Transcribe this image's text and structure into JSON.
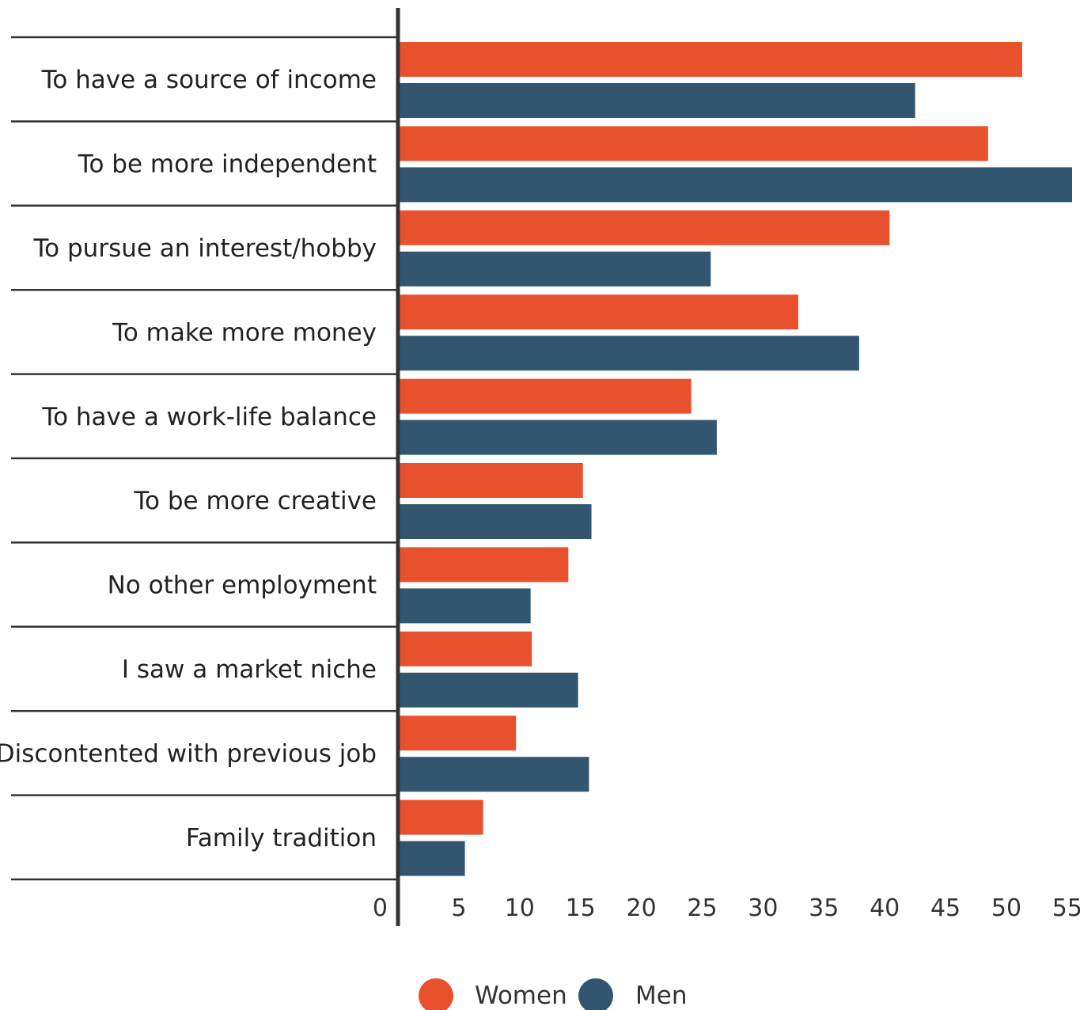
{
  "chart_data": {
    "type": "bar",
    "orientation": "horizontal",
    "categories": [
      "To have a source of income",
      "To be more independent",
      "To pursue an interest/hobby",
      "To make more money",
      "To have a work-life balance",
      "To be more creative",
      "No other employment",
      "I saw a market niche",
      "Discontented with previous job",
      "Family tradition"
    ],
    "series": [
      {
        "name": "Women",
        "color": "#E8512E",
        "values": [
          51.3,
          48.5,
          40.4,
          32.9,
          24.1,
          15.2,
          14.0,
          11.0,
          9.7,
          7.0
        ]
      },
      {
        "name": "Men",
        "color": "#32566F",
        "values": [
          42.5,
          55.4,
          25.7,
          37.9,
          26.2,
          15.9,
          10.9,
          14.8,
          15.7,
          5.5
        ]
      }
    ],
    "xlim": [
      0,
      55
    ],
    "xticks": [
      "0",
      "5",
      "10",
      "15",
      "20",
      "25",
      "30",
      "35",
      "40",
      "45",
      "50",
      "55"
    ],
    "legend_position": "bottom-center",
    "grid": false
  }
}
